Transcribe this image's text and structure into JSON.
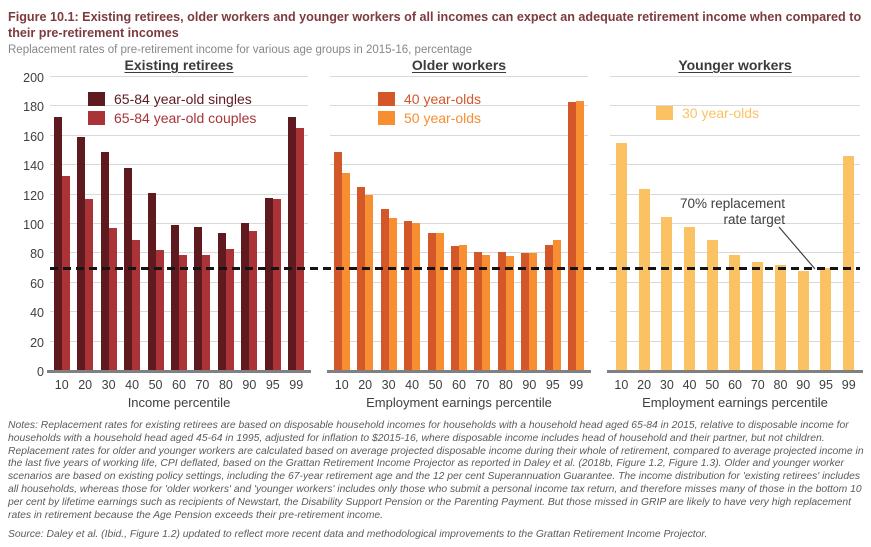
{
  "header": {
    "title": "Figure 10.1: Existing retirees, older workers and younger workers of all incomes can expect an adequate retirement income when compared to their pre-retirement incomes",
    "subtitle": "Replacement rates of pre-retirement income for various age groups in 2015-16, percentage"
  },
  "axis": {
    "ylim": [
      0,
      200
    ],
    "yticks": [
      0,
      20,
      40,
      60,
      80,
      100,
      120,
      140,
      160,
      180,
      200
    ],
    "ref_line_value": 70,
    "grid": "horizontal"
  },
  "annotation": {
    "line1": "70% replacement",
    "line2": "rate target"
  },
  "chart_data": [
    {
      "type": "bar",
      "title": "Existing retirees",
      "xlabel": "Income percentile",
      "ylim": [
        0,
        200
      ],
      "categories": [
        "10",
        "20",
        "30",
        "40",
        "50",
        "60",
        "70",
        "80",
        "90",
        "95",
        "99"
      ],
      "series": [
        {
          "name": "65-84 year-old singles",
          "color": "#5f1a1f",
          "values": [
            173,
            159,
            149,
            138,
            121,
            99,
            98,
            94,
            101,
            118,
            173
          ]
        },
        {
          "name": "65-84 year-old couples",
          "color": "#a93337",
          "values": [
            133,
            117,
            97,
            89,
            82,
            79,
            79,
            83,
            95,
            117,
            165
          ]
        }
      ],
      "legend_position": "upper-left-inside"
    },
    {
      "type": "bar",
      "title": "Older workers",
      "xlabel": "Employment earnings percentile",
      "ylim": [
        0,
        200
      ],
      "categories": [
        "10",
        "20",
        "30",
        "40",
        "50",
        "60",
        "70",
        "80",
        "90",
        "95",
        "99"
      ],
      "series": [
        {
          "name": "40 year-olds",
          "color": "#d4572a",
          "values": [
            149,
            125,
            110,
            102,
            94,
            85,
            81,
            81,
            80,
            86,
            183
          ]
        },
        {
          "name": "50 year-olds",
          "color": "#f78e31",
          "values": [
            135,
            120,
            104,
            101,
            94,
            86,
            79,
            78,
            80,
            89,
            184
          ]
        }
      ],
      "legend_position": "upper-left-inside"
    },
    {
      "type": "bar",
      "title": "Younger workers",
      "xlabel": "Employment earnings percentile",
      "ylim": [
        0,
        200
      ],
      "categories": [
        "10",
        "20",
        "30",
        "40",
        "50",
        "60",
        "70",
        "80",
        "90",
        "95",
        "99"
      ],
      "series": [
        {
          "name": "30 year-olds",
          "color": "#fbc264",
          "values": [
            155,
            124,
            105,
            98,
            89,
            79,
            74,
            72,
            68,
            70,
            146
          ]
        }
      ],
      "legend_position": "upper-left-inside",
      "annotation": "70% replacement rate target"
    }
  ],
  "footer": {
    "notes": "Notes: Replacement rates for existing retirees are based on disposable household incomes for households with a household head aged 65-84 in 2015, relative to disposable income for households with a household head aged 45-64 in 1995, adjusted for inflation to $2015-16, where disposable income includes head of household and their partner, but not children. Replacement rates for older and younger workers are calculated based on average projected disposable income during their whole of retirement, compared to average projected income in the last five years of working life, CPI deflated, based on the Grattan Retirement Income Projector as reported in Daley et al. (2018b, Figure 1.2, Figure 1.3). Older and younger worker scenarios are based on existing policy settings, including the 67-year retirement age and the 12 per cent Superannuation Guarantee. The income distribution for 'existing retirees' includes all households, whereas those for 'older workers' and 'younger workers' includes only those who submit a personal income tax return, and therefore misses many of those in the bottom 10 per cent by lifetime earnings such as recipients of Newstart, the Disability Support Pension or the Parenting Payment. But those missed in GRIP are likely to have very high replacement rates in retirement because the Age Pension exceeds their pre-retirement income.",
    "source": "Source: Daley et al. (Ibid., Figure 1.2) updated to reflect more recent data and methodological improvements to the Grattan Retirement Income Projector."
  }
}
